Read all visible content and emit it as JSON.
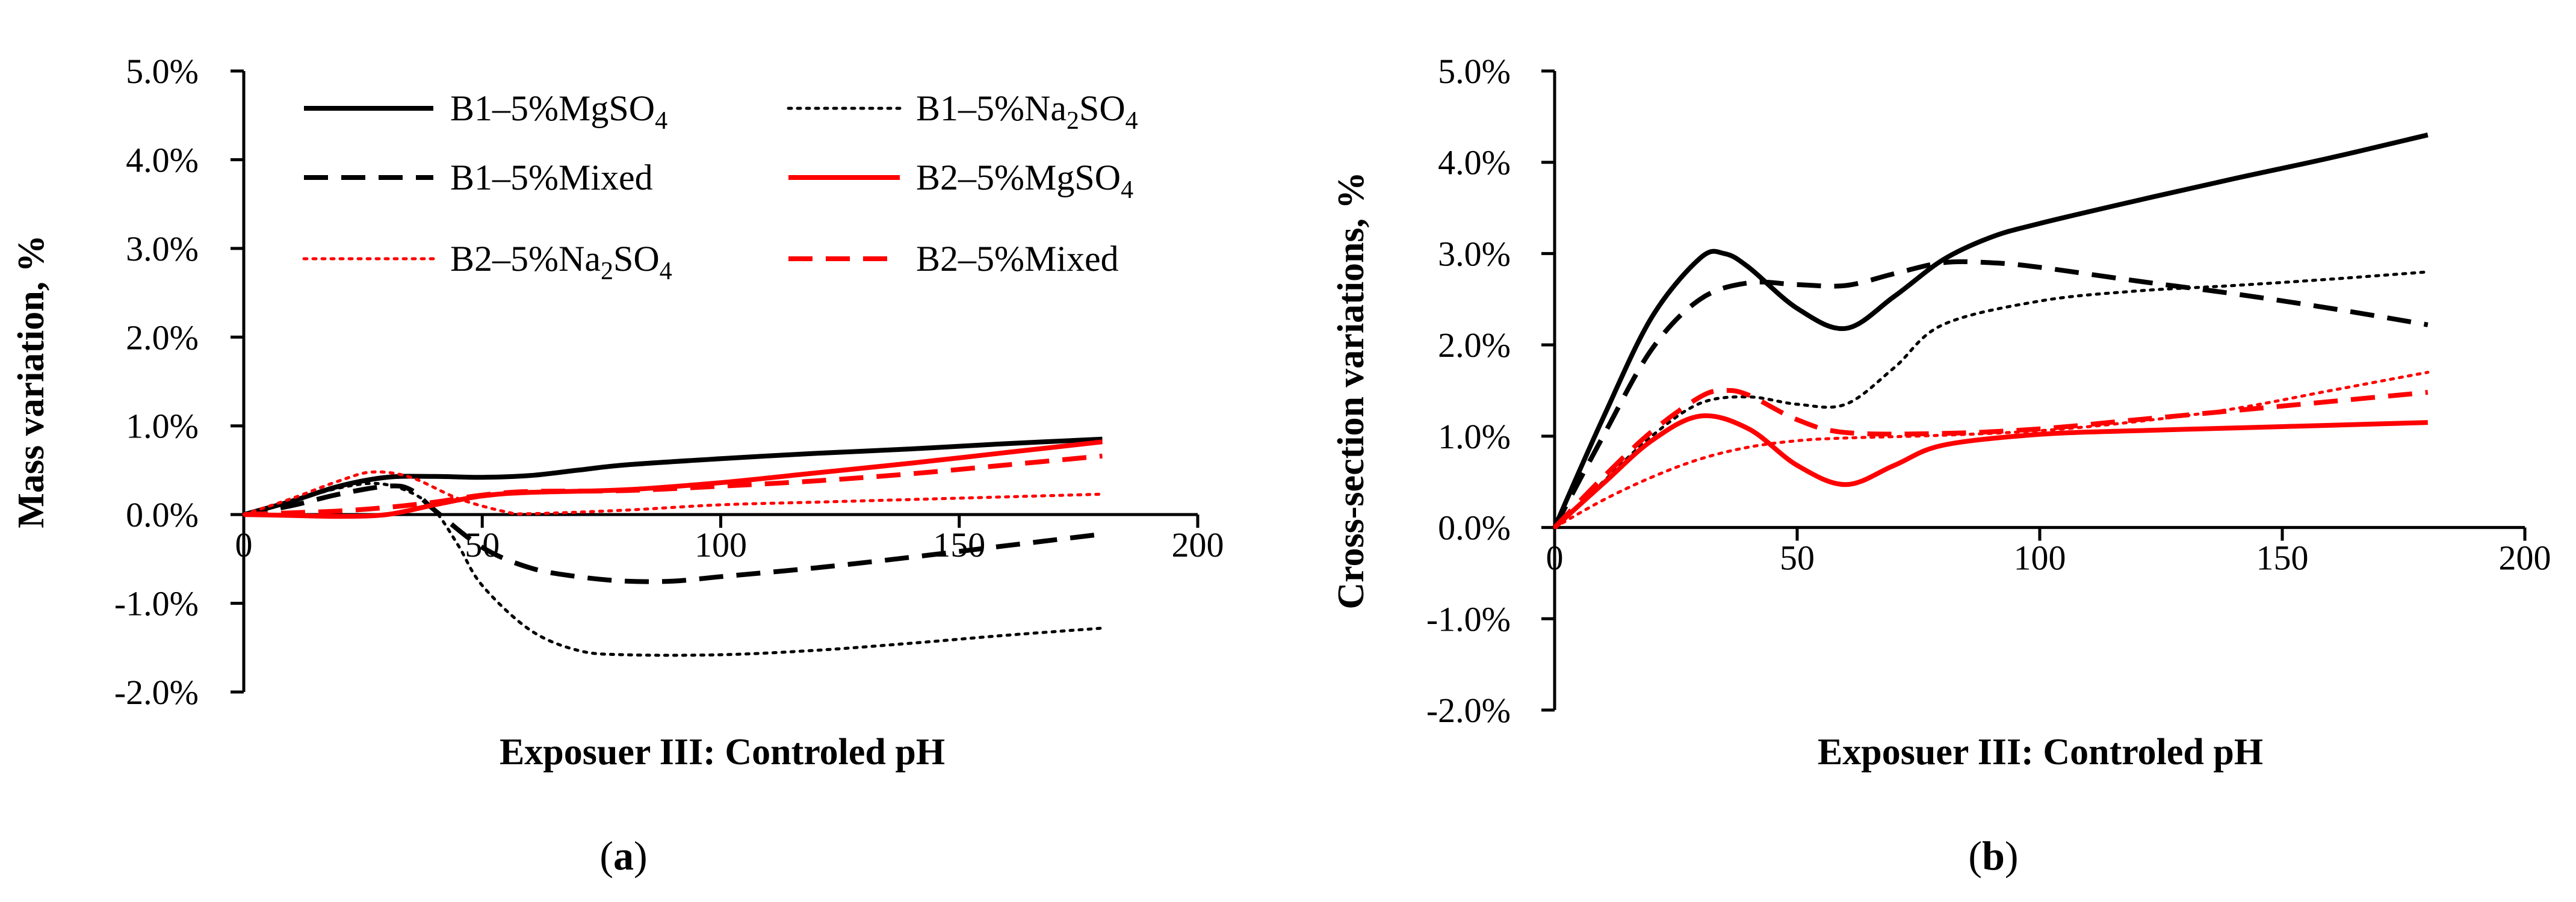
{
  "series_styles": {
    "B1-5%MgSO4": {
      "color": "#000000",
      "dash": "solid"
    },
    "B1-5%Na2SO4": {
      "color": "#000000",
      "dash": "dot"
    },
    "B1-5%Mixed": {
      "color": "#000000",
      "dash": "dash"
    },
    "B2-5%MgSO4": {
      "color": "#ff0000",
      "dash": "solid"
    },
    "B2-5%Na2SO4": {
      "color": "#ff0000",
      "dash": "dot"
    },
    "B2-5%Mixed": {
      "color": "#ff0000",
      "dash": "dash"
    }
  },
  "legend": [
    {
      "key": "B1-5%MgSO4",
      "prefix": "B1–5%MgSO",
      "sub": "4"
    },
    {
      "key": "B1-5%Na2SO4",
      "prefix": "B1–5%Na",
      "sub": "2",
      "mid": "SO",
      "sub2": "4"
    },
    {
      "key": "B1-5%Mixed",
      "prefix": "B1–5%Mixed"
    },
    {
      "key": "B2-5%MgSO4",
      "prefix": "B2–5%MgSO",
      "sub": "4"
    },
    {
      "key": "B2-5%Na2SO4",
      "prefix": "B2–5%Na",
      "sub": "2",
      "mid": "SO",
      "sub2": "4"
    },
    {
      "key": "B2-5%Mixed",
      "prefix": "B2–5%Mixed"
    }
  ],
  "chart_data": [
    {
      "panel": "a",
      "type": "line",
      "caption_open": "(",
      "caption_letter": "a",
      "caption_close": ")",
      "xlabel": "Exposuer III: Controled pH",
      "ylabel": "Mass variation, %",
      "xlim": [
        0,
        200
      ],
      "ylim": [
        -0.02,
        0.05
      ],
      "x_ticks": [
        0,
        50,
        100,
        150,
        200
      ],
      "x_tick_labels": [
        "0",
        "50",
        "100",
        "150",
        "200"
      ],
      "y_ticks": [
        -0.02,
        -0.01,
        0,
        0.01,
        0.02,
        0.03,
        0.04,
        0.05
      ],
      "y_tick_labels": [
        "-2.0%",
        "-1.0%",
        "0.0%",
        "1.0%",
        "2.0%",
        "3.0%",
        "4.0%",
        "5.0%"
      ],
      "series": [
        {
          "key": "B1-5%MgSO4",
          "x": [
            0,
            10,
            20,
            30,
            40,
            50,
            60,
            70,
            80,
            100,
            120,
            140,
            160,
            180
          ],
          "values": [
            0,
            0.0015,
            0.0032,
            0.0042,
            0.0043,
            0.0042,
            0.0044,
            0.005,
            0.0056,
            0.0063,
            0.0069,
            0.0074,
            0.008,
            0.0085
          ]
        },
        {
          "key": "B1-5%Mixed",
          "x": [
            0,
            10,
            20,
            30,
            35,
            40,
            50,
            60,
            70,
            80,
            90,
            100,
            120,
            140,
            160,
            180
          ],
          "values": [
            0,
            0.001,
            0.0023,
            0.0032,
            0.0028,
            0.0005,
            -0.0037,
            -0.006,
            -0.007,
            -0.0075,
            -0.0075,
            -0.007,
            -0.006,
            -0.0048,
            -0.0035,
            -0.0022
          ]
        },
        {
          "key": "B1-5%Na2SO4",
          "x": [
            0,
            10,
            20,
            28,
            35,
            40,
            45,
            50,
            60,
            70,
            80,
            100,
            120,
            140,
            160,
            180
          ],
          "values": [
            0,
            0.0015,
            0.003,
            0.0035,
            0.0025,
            0.0005,
            -0.0035,
            -0.008,
            -0.013,
            -0.0153,
            -0.0158,
            -0.0158,
            -0.0153,
            -0.0145,
            -0.0136,
            -0.0128
          ]
        },
        {
          "key": "B2-5%MgSO4",
          "x": [
            0,
            10,
            20,
            30,
            40,
            50,
            60,
            80,
            100,
            120,
            140,
            160,
            180
          ],
          "values": [
            0,
            -0.0001,
            -0.0002,
            0,
            0.0011,
            0.0021,
            0.0025,
            0.0028,
            0.0036,
            0.0047,
            0.0058,
            0.007,
            0.0082
          ]
        },
        {
          "key": "B2-5%Na2SO4",
          "x": [
            0,
            10,
            20,
            27,
            35,
            45,
            55,
            60,
            80,
            100,
            120,
            140,
            160,
            180
          ],
          "values": [
            0,
            0.0018,
            0.0038,
            0.0048,
            0.0042,
            0.0018,
            0.0003,
            0.0001,
            0.0005,
            0.0011,
            0.0014,
            0.0017,
            0.002,
            0.0023
          ]
        },
        {
          "key": "B2-5%Mixed",
          "x": [
            0,
            10,
            20,
            30,
            40,
            50,
            60,
            80,
            100,
            120,
            140,
            160,
            180
          ],
          "values": [
            0,
            0.0002,
            0.0004,
            0.0008,
            0.0014,
            0.0022,
            0.0026,
            0.0027,
            0.0032,
            0.0038,
            0.0046,
            0.0056,
            0.0066
          ]
        }
      ]
    },
    {
      "panel": "b",
      "type": "line",
      "caption_open": "(",
      "caption_letter": "b",
      "caption_close": ")",
      "xlabel": "Exposuer III: Controled pH",
      "ylabel": "Cross-section variations,  %",
      "xlim": [
        0,
        200
      ],
      "ylim": [
        -0.02,
        0.05
      ],
      "x_ticks": [
        0,
        50,
        100,
        150,
        200
      ],
      "x_tick_labels": [
        "0",
        "50",
        "100",
        "150",
        "200"
      ],
      "y_ticks": [
        -0.02,
        -0.01,
        0,
        0.01,
        0.02,
        0.03,
        0.04,
        0.05
      ],
      "y_tick_labels": [
        "-2.0%",
        "-1.0%",
        "0.0%",
        "1.0%",
        "2.0%",
        "3.0%",
        "4.0%",
        "5.0%"
      ],
      "series": [
        {
          "key": "B1-5%MgSO4",
          "x": [
            0,
            10,
            20,
            30,
            35,
            40,
            50,
            60,
            70,
            80,
            90,
            100,
            120,
            140,
            160,
            180
          ],
          "values": [
            0,
            0.012,
            0.023,
            0.0295,
            0.03,
            0.0285,
            0.024,
            0.0218,
            0.0253,
            0.0293,
            0.0318,
            0.0333,
            0.0358,
            0.0382,
            0.0405,
            0.043
          ]
        },
        {
          "key": "B1-5%Mixed",
          "x": [
            0,
            10,
            20,
            30,
            40,
            50,
            60,
            70,
            80,
            90,
            100,
            120,
            140,
            160,
            180
          ],
          "values": [
            0,
            0.01,
            0.0195,
            0.025,
            0.0268,
            0.0266,
            0.0265,
            0.0278,
            0.029,
            0.029,
            0.0285,
            0.027,
            0.0256,
            0.024,
            0.0222
          ]
        },
        {
          "key": "B1-5%Na2SO4",
          "x": [
            0,
            10,
            20,
            30,
            40,
            50,
            60,
            70,
            80,
            100,
            120,
            140,
            160,
            180
          ],
          "values": [
            0,
            0.005,
            0.01,
            0.0136,
            0.0143,
            0.0135,
            0.0135,
            0.0175,
            0.0222,
            0.0248,
            0.0259,
            0.0265,
            0.0272,
            0.028
          ]
        },
        {
          "key": "B2-5%MgSO4",
          "x": [
            0,
            10,
            20,
            30,
            40,
            50,
            60,
            70,
            80,
            100,
            120,
            140,
            160,
            180
          ],
          "values": [
            0,
            0.0048,
            0.0095,
            0.0122,
            0.0108,
            0.0068,
            0.0047,
            0.0068,
            0.009,
            0.0102,
            0.0106,
            0.0109,
            0.0112,
            0.0115
          ]
        },
        {
          "key": "B2-5%Na2SO4",
          "x": [
            0,
            10,
            20,
            30,
            40,
            50,
            60,
            80,
            100,
            120,
            140,
            160,
            180
          ],
          "values": [
            0,
            0.003,
            0.0055,
            0.0075,
            0.0088,
            0.0095,
            0.0098,
            0.0101,
            0.0106,
            0.0116,
            0.013,
            0.015,
            0.017
          ]
        },
        {
          "key": "B2-5%Mixed",
          "x": [
            0,
            10,
            20,
            30,
            35,
            40,
            50,
            60,
            80,
            100,
            120,
            140,
            160,
            180
          ],
          "values": [
            0,
            0.0055,
            0.0105,
            0.0143,
            0.015,
            0.0145,
            0.0118,
            0.0104,
            0.0103,
            0.0108,
            0.0118,
            0.0128,
            0.0138,
            0.0148
          ]
        }
      ]
    }
  ]
}
